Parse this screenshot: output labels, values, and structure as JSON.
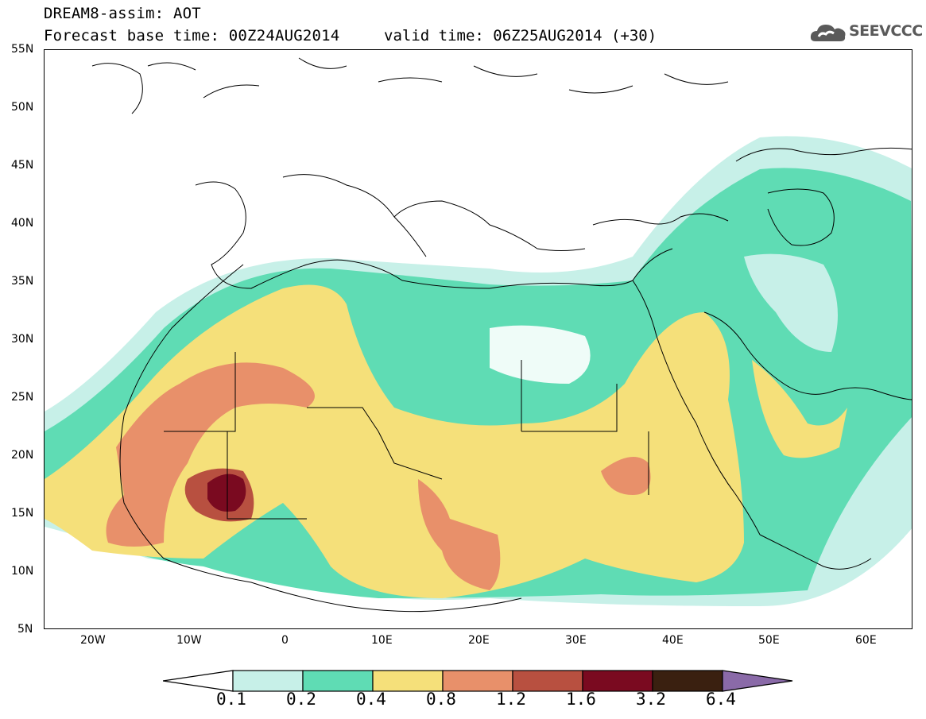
{
  "title": {
    "line1": "DREAM8-assim: AOT",
    "line2": "Forecast base time: 00Z24AUG2014",
    "valid": "valid time: 06Z25AUG2014 (+30)"
  },
  "logo": {
    "text": "SEEVCCC",
    "icon": "cloud-icon"
  },
  "axes": {
    "y_labels": [
      "55N",
      "50N",
      "45N",
      "40N",
      "35N",
      "30N",
      "25N",
      "20N",
      "15N",
      "10N",
      "5N"
    ],
    "x_labels": [
      "20W",
      "10W",
      "0",
      "10E",
      "20E",
      "30E",
      "40E",
      "50E",
      "60E"
    ]
  },
  "colorbar": {
    "labels": [
      "0.1",
      "0.2",
      "0.4",
      "0.8",
      "1.2",
      "1.6",
      "3.2",
      "6.4"
    ],
    "colors": [
      "#c7f0e8",
      "#5fdcb4",
      "#f5e07a",
      "#e8906a",
      "#b85040",
      "#7a0a20",
      "#3a2010",
      "#8a6aa8"
    ]
  }
}
